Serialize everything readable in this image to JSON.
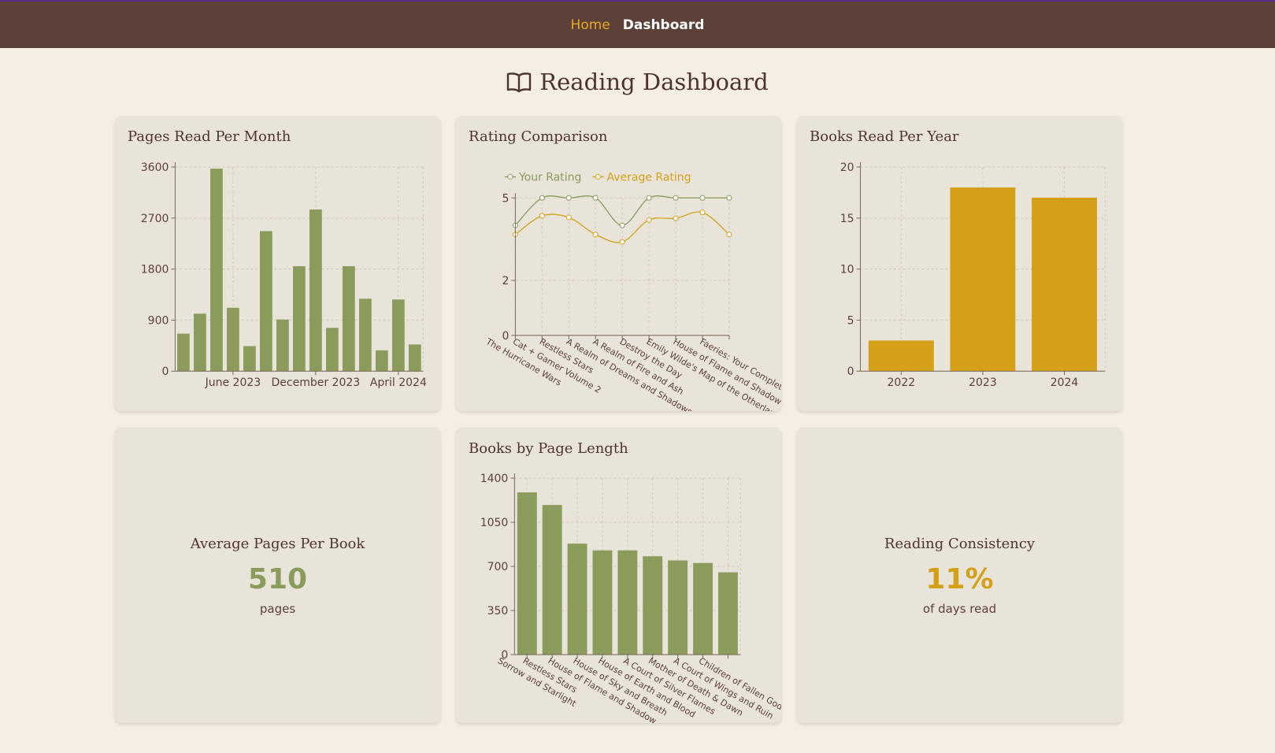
{
  "nav": {
    "links": [
      "Home",
      "Dashboard"
    ]
  },
  "header": {
    "title": "Reading Dashboard"
  },
  "chart_data": [
    {
      "type": "bar",
      "title": "Pages Read Per Month",
      "categories": [
        null,
        null,
        null,
        "June 2023",
        null,
        null,
        null,
        null,
        "December 2023",
        null,
        null,
        null,
        null,
        "April 2024",
        null
      ],
      "values": [
        661,
        1014,
        3571,
        1117,
        441,
        2469,
        911,
        1851,
        2851,
        764,
        1851,
        1278,
        367,
        1264,
        470
      ],
      "color": "#8a9b5c",
      "ylim": [
        0,
        3600
      ],
      "yticks": [
        0,
        900,
        1800,
        2700,
        3600
      ],
      "grid": true
    },
    {
      "type": "line",
      "title": "Rating Comparison",
      "categories": [
        "The Hurricane Wars",
        "Cat + Gamer Volume 2",
        "Restless Stars",
        "A Realm of Dreams and Shadows",
        "A Realm of Fire and Ash",
        "Destroy the Day",
        "Emily Wilde's Map of the Otherlands",
        "House of Flame and Shadow",
        "Faeries: Your Complete Guide to t"
      ],
      "series": [
        {
          "name": "Your Rating",
          "color": "#8a9b5c",
          "values": [
            4,
            5,
            5,
            5,
            4,
            5,
            5,
            5,
            5
          ]
        },
        {
          "name": "Average Rating",
          "color": "#d4a017",
          "values": [
            3.67,
            4.35,
            4.29,
            3.67,
            3.4,
            4.2,
            4.26,
            4.47,
            3.67
          ]
        }
      ],
      "ylim": [
        0,
        5
      ],
      "yticks": [
        0,
        2,
        5
      ],
      "grid": true,
      "legend": "top"
    },
    {
      "type": "bar",
      "title": "Books Read Per Year",
      "categories": [
        "2022",
        "2023",
        "2024"
      ],
      "values": [
        3,
        18,
        17
      ],
      "color": "#d4a017",
      "ylim": [
        0,
        20
      ],
      "yticks": [
        0,
        5,
        10,
        15,
        20
      ],
      "grid": true
    },
    {
      "type": "bar",
      "title": "Books by Page Length",
      "categories": [
        "Sorrow and Starlight",
        "Restless Stars",
        "House of Flame and Shadow",
        "House of Sky and Breath",
        "House of Earth and Blood",
        "A Court of Silver Flames",
        "Mother of Death & Dawn",
        "A Court of Wings and Ruin",
        "Children of Fallen Gods"
      ],
      "values": [
        1287,
        1187,
        880,
        827,
        827,
        780,
        747,
        727,
        653
      ],
      "color": "#8a9b5c",
      "ylim": [
        0,
        1400
      ],
      "yticks": [
        0,
        350,
        700,
        1050,
        1400
      ],
      "grid": true
    }
  ],
  "stats": [
    {
      "title": "Average Pages Per Book",
      "value": "510",
      "unit": "pages"
    },
    {
      "title": "Reading Consistency",
      "value": "11%",
      "unit": "of days read"
    }
  ]
}
